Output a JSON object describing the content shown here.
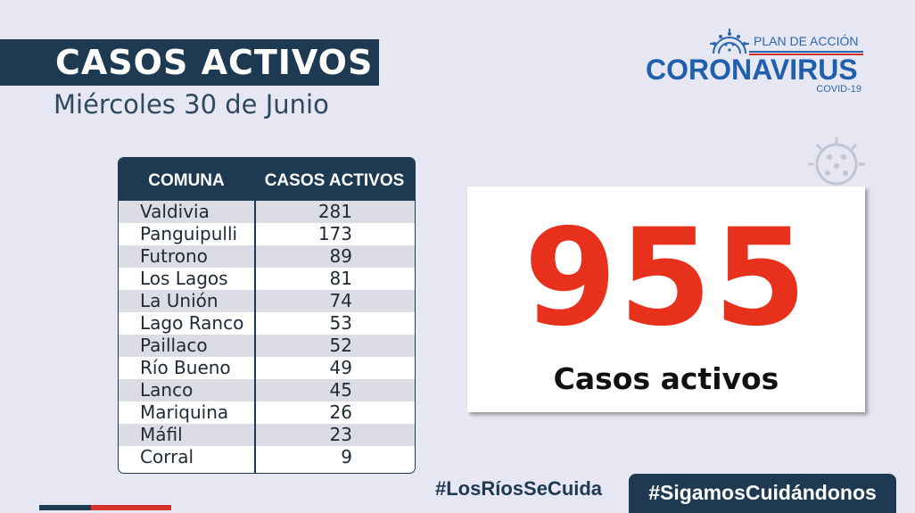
{
  "header": {
    "title": "CASOS ACTIVOS",
    "date": "Miércoles 30 de Junio"
  },
  "logo": {
    "line1": "PLAN DE ACCIÓN",
    "line2": "CORONAVIRUS",
    "line3": "COVID-19",
    "icon": "virus-icon",
    "colors": {
      "blue": "#1f5fae",
      "red": "#d8312b"
    }
  },
  "table": {
    "headers": [
      "COMUNA",
      "CASOS ACTIVOS"
    ],
    "rows": [
      {
        "comuna": "Valdivia",
        "casos": "281"
      },
      {
        "comuna": "Panguipulli",
        "casos": "173"
      },
      {
        "comuna": "Futrono",
        "casos": "89"
      },
      {
        "comuna": "Los Lagos",
        "casos": "81"
      },
      {
        "comuna": "La Unión",
        "casos": "74"
      },
      {
        "comuna": "Lago Ranco",
        "casos": "53"
      },
      {
        "comuna": "Paillaco",
        "casos": "52"
      },
      {
        "comuna": "Río Bueno",
        "casos": "49"
      },
      {
        "comuna": "Lanco",
        "casos": "45"
      },
      {
        "comuna": "Mariquina",
        "casos": "26"
      },
      {
        "comuna": "Máfil",
        "casos": "23"
      },
      {
        "comuna": "Corral",
        "casos": "9"
      }
    ]
  },
  "total": {
    "number": "955",
    "label": "Casos activos",
    "color": "#e8311c"
  },
  "footer": {
    "hashtag1": "#LosRíosSeCuida",
    "hashtag2": "#SigamosCuidándonos"
  },
  "colors": {
    "navy": "#1d3a52",
    "background": "#e6e7f2"
  }
}
